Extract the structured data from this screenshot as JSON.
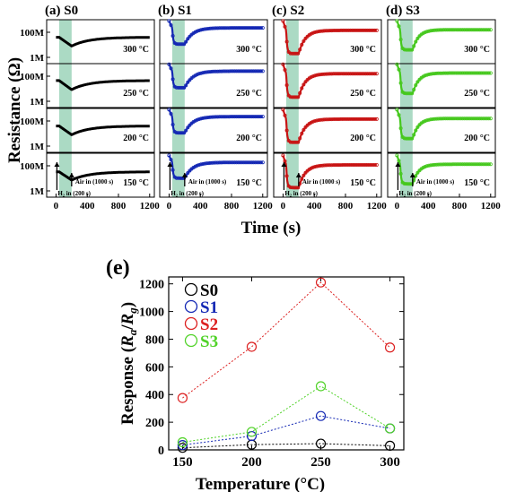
{
  "top_figure": {
    "y_axis_label": "Resistance (Ω)",
    "x_axis_label": "Time (s)",
    "x_ticks": [
      "0",
      "400",
      "800",
      "1200"
    ],
    "x_tick_values": [
      0,
      400,
      800,
      1200
    ],
    "x_range": [
      -120,
      1260
    ],
    "y_ticks": [
      "100M",
      "1M"
    ],
    "y_tick_exponents": [
      8,
      6
    ],
    "y_log_range": [
      5.5,
      9.0
    ],
    "h2_band_s": [
      40,
      200
    ],
    "annotation_h2": "H₂ in (200 s)",
    "annotation_air": "Air in (1000 s)",
    "panels": [
      {
        "label": "(a) S0",
        "name": "S0",
        "color": "#000000"
      },
      {
        "label": "(b) S1",
        "name": "S1",
        "color": "#1428b4"
      },
      {
        "label": "(c) S2",
        "name": "S2",
        "color": "#c81414"
      },
      {
        "label": "(d) S3",
        "name": "S3",
        "color": "#46c81e"
      }
    ],
    "rows": [
      "300 °C",
      "250 °C",
      "200 °C",
      "150 °C"
    ]
  },
  "chart_data": {
    "type": "line",
    "label": "(e)",
    "xlabel": "Temperature (°C)",
    "ylabel": "Response (R_a/R_g)",
    "categories": [
      150,
      200,
      250,
      300
    ],
    "xlim": [
      140,
      310
    ],
    "ylim": [
      0,
      1250
    ],
    "yticks": [
      0,
      200,
      400,
      600,
      800,
      1000,
      1200
    ],
    "legend_placement": "top-left",
    "series": [
      {
        "name": "S0",
        "color": "#000000",
        "values": [
          15,
          38,
          45,
          30
        ]
      },
      {
        "name": "S1",
        "color": "#1428b4",
        "values": [
          35,
          100,
          245,
          155
        ]
      },
      {
        "name": "S2",
        "color": "#dc2020",
        "values": [
          375,
          745,
          1210,
          740
        ]
      },
      {
        "name": "S3",
        "color": "#50d228",
        "values": [
          55,
          130,
          460,
          155
        ]
      }
    ]
  }
}
